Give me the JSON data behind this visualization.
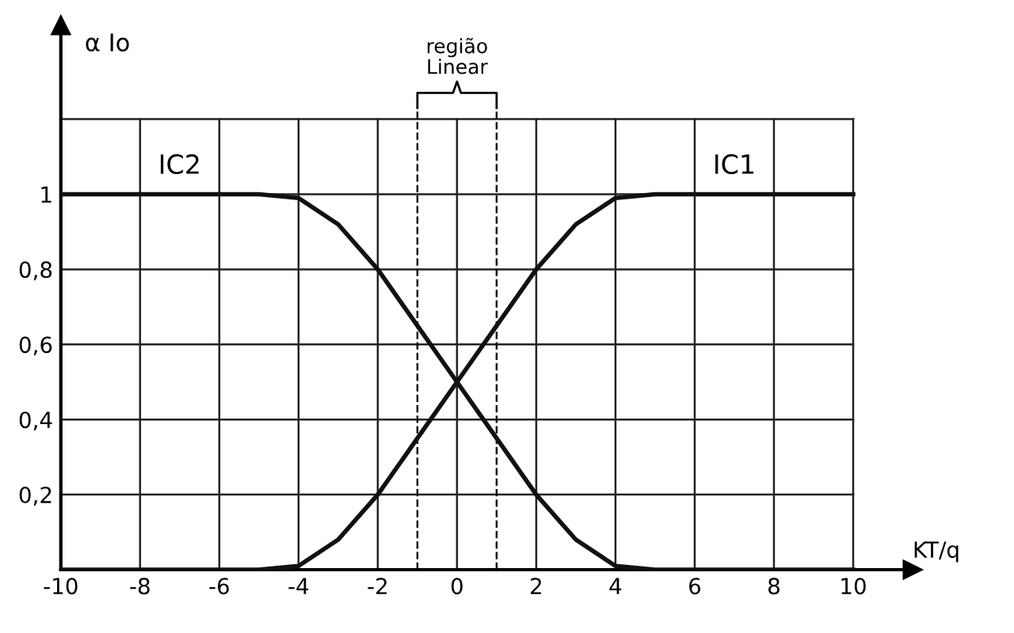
{
  "chart_data": {
    "type": "line",
    "xlabel": "KT/q",
    "ylabel": "α Io",
    "x": [
      -10,
      -6,
      -5,
      -4,
      -3,
      -2,
      -1,
      0,
      1,
      2,
      3,
      4,
      5,
      6,
      10
    ],
    "series": [
      {
        "name": "IC1",
        "color": "#111111",
        "values": [
          0,
          0,
          0,
          0.01,
          0.08,
          0.2,
          0.35,
          0.5,
          0.65,
          0.8,
          0.92,
          0.99,
          1,
          1,
          1
        ]
      },
      {
        "name": "IC2",
        "color": "#111111",
        "values": [
          1,
          1,
          1,
          0.99,
          0.92,
          0.8,
          0.65,
          0.5,
          0.35,
          0.2,
          0.08,
          0.01,
          0,
          0,
          0
        ]
      }
    ],
    "xlim": [
      -10,
      11.5
    ],
    "ylim": [
      0,
      1.45
    ],
    "xticks": [
      -10,
      -8,
      -6,
      -4,
      -2,
      0,
      2,
      4,
      6,
      8,
      10
    ],
    "yticks": [
      {
        "value": 0,
        "label": null
      },
      {
        "value": 0.2,
        "label": "0,2"
      },
      {
        "value": 0.4,
        "label": "0,4"
      },
      {
        "value": 0.6,
        "label": "0,6"
      },
      {
        "value": 0.8,
        "label": "0,8"
      },
      {
        "value": 1,
        "label": "1"
      },
      {
        "value": 1.2,
        "label": null
      }
    ],
    "ref_lines": [
      {
        "axis": "x",
        "value": -1,
        "label": null,
        "line_style": "dashed",
        "color": "#111111"
      },
      {
        "axis": "x",
        "value": 1,
        "label": null,
        "line_style": "dashed",
        "color": "#111111"
      }
    ],
    "annotations": [
      "região\nLinear"
    ],
    "grid": true,
    "marker": "none",
    "line_style": "solid",
    "legend": false
  }
}
